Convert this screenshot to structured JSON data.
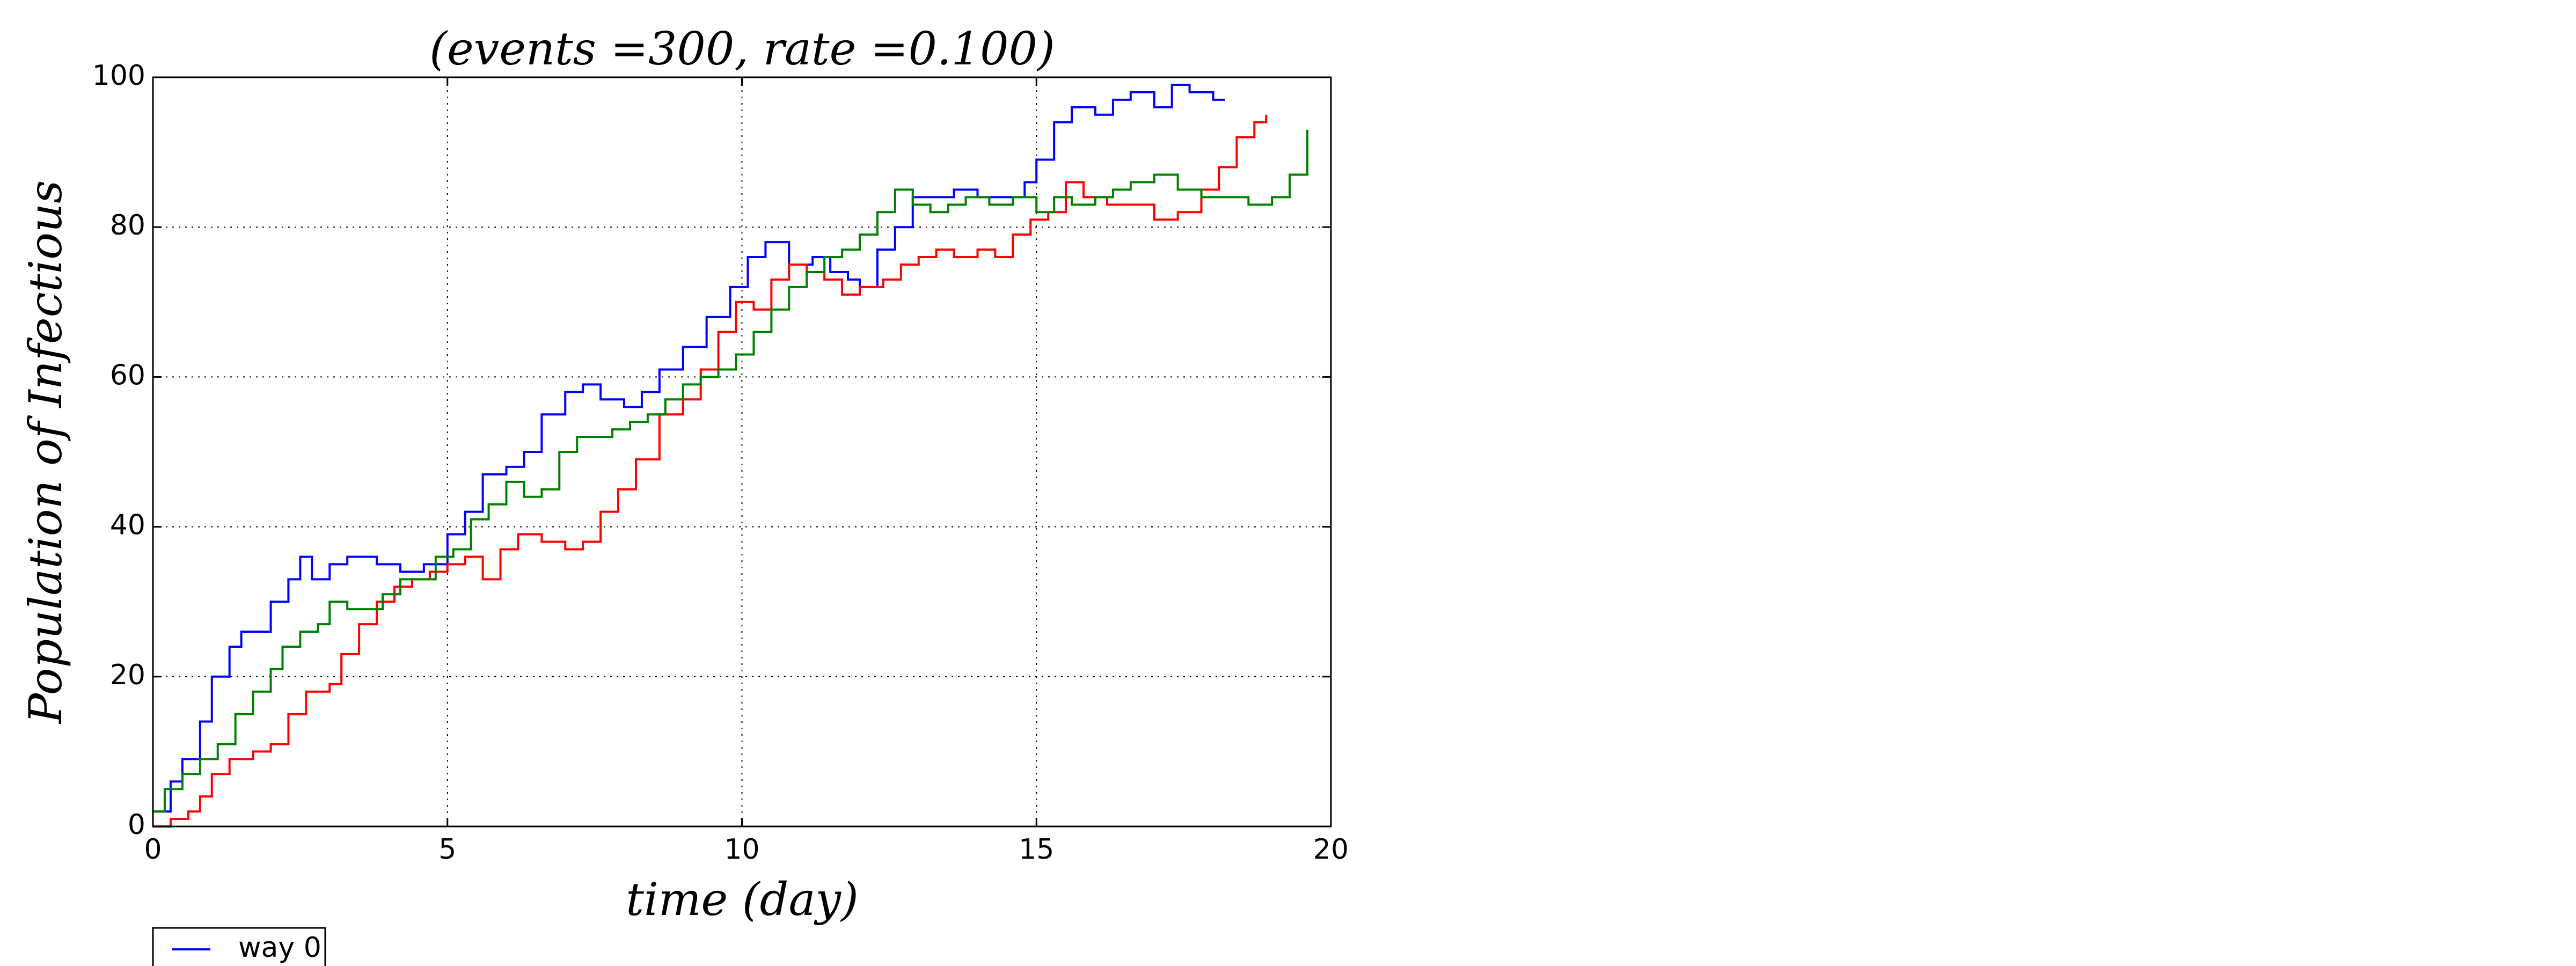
{
  "chart_data": {
    "type": "line",
    "step": "post",
    "title": "(events =300, rate =0.100)",
    "x_label": "time (day)",
    "y_label": "Population of Infectious",
    "xlim": [
      0,
      20
    ],
    "xticks": [
      0,
      5,
      10,
      15,
      20
    ],
    "ylim": [
      0,
      100
    ],
    "yticks": [
      0,
      20,
      40,
      60,
      80,
      100
    ],
    "grid": true,
    "legend": "lower left",
    "series": [
      {
        "name": "way 0",
        "color": "#0000ff",
        "x": [
          0,
          0.3,
          0.5,
          0.8,
          1.0,
          1.3,
          1.5,
          2.0,
          2.3,
          2.5,
          2.7,
          3.0,
          3.3,
          3.8,
          4.2,
          4.6,
          5.0,
          5.3,
          5.6,
          6.0,
          6.3,
          6.6,
          7.0,
          7.3,
          7.6,
          8.0,
          8.3,
          8.6,
          9.0,
          9.4,
          9.8,
          10.1,
          10.4,
          10.8,
          11.2,
          11.5,
          11.8,
          12.0,
          12.3,
          12.6,
          12.9,
          13.3,
          13.6,
          14.0,
          14.5,
          14.8,
          15.0,
          15.3,
          15.6,
          16.0,
          16.3,
          16.6,
          17.0,
          17.3,
          17.6,
          18.0,
          18.2
        ],
        "values": [
          2,
          6,
          9,
          14,
          20,
          24,
          26,
          30,
          33,
          36,
          33,
          35,
          36,
          35,
          34,
          35,
          39,
          42,
          47,
          48,
          50,
          55,
          58,
          59,
          57,
          56,
          58,
          61,
          64,
          68,
          72,
          76,
          78,
          75,
          76,
          74,
          73,
          72,
          77,
          80,
          84,
          84,
          85,
          84,
          84,
          86,
          89,
          94,
          96,
          95,
          97,
          98,
          96,
          99,
          98,
          97,
          97
        ]
      },
      {
        "color": "#ff0000",
        "x": [
          0,
          0.3,
          0.6,
          0.8,
          1.0,
          1.3,
          1.7,
          2.0,
          2.3,
          2.6,
          3.0,
          3.2,
          3.5,
          3.8,
          4.1,
          4.4,
          4.7,
          5.0,
          5.3,
          5.6,
          5.9,
          6.2,
          6.6,
          7.0,
          7.3,
          7.6,
          7.9,
          8.2,
          8.6,
          9.0,
          9.3,
          9.6,
          9.9,
          10.2,
          10.5,
          10.8,
          11.1,
          11.4,
          11.7,
          12.0,
          12.4,
          12.7,
          13.0,
          13.3,
          13.6,
          14.0,
          14.3,
          14.6,
          14.9,
          15.2,
          15.5,
          15.8,
          16.2,
          16.6,
          17.0,
          17.4,
          17.8,
          18.1,
          18.4,
          18.7,
          18.9
        ],
        "values": [
          0,
          1,
          2,
          4,
          7,
          9,
          10,
          11,
          15,
          18,
          19,
          23,
          27,
          30,
          32,
          33,
          34,
          35,
          36,
          33,
          37,
          39,
          38,
          37,
          38,
          42,
          45,
          49,
          55,
          57,
          61,
          66,
          70,
          69,
          73,
          75,
          74,
          73,
          71,
          72,
          73,
          75,
          76,
          77,
          76,
          77,
          76,
          79,
          81,
          82,
          86,
          84,
          83,
          83,
          81,
          82,
          85,
          88,
          92,
          94,
          95
        ]
      },
      {
        "color": "#008000",
        "x": [
          0,
          0.2,
          0.5,
          0.8,
          1.1,
          1.4,
          1.7,
          2.0,
          2.2,
          2.5,
          2.8,
          3.0,
          3.3,
          3.6,
          3.9,
          4.2,
          4.5,
          4.8,
          5.1,
          5.4,
          5.7,
          6.0,
          6.3,
          6.6,
          6.9,
          7.2,
          7.5,
          7.8,
          8.1,
          8.4,
          8.7,
          9.0,
          9.3,
          9.6,
          9.9,
          10.2,
          10.5,
          10.8,
          11.1,
          11.4,
          11.7,
          12.0,
          12.3,
          12.6,
          12.9,
          13.2,
          13.5,
          13.8,
          14.2,
          14.6,
          15.0,
          15.3,
          15.6,
          16.0,
          16.3,
          16.6,
          17.0,
          17.4,
          17.8,
          18.2,
          18.6,
          19.0,
          19.3,
          19.6
        ],
        "values": [
          2,
          5,
          7,
          9,
          11,
          15,
          18,
          21,
          24,
          26,
          27,
          30,
          29,
          29,
          31,
          33,
          33,
          36,
          37,
          41,
          43,
          46,
          44,
          45,
          50,
          52,
          52,
          53,
          54,
          55,
          57,
          59,
          60,
          61,
          63,
          66,
          69,
          72,
          74,
          76,
          77,
          79,
          82,
          85,
          83,
          82,
          83,
          84,
          83,
          84,
          82,
          84,
          83,
          84,
          85,
          86,
          87,
          85,
          84,
          84,
          83,
          84,
          87,
          93
        ]
      }
    ]
  }
}
